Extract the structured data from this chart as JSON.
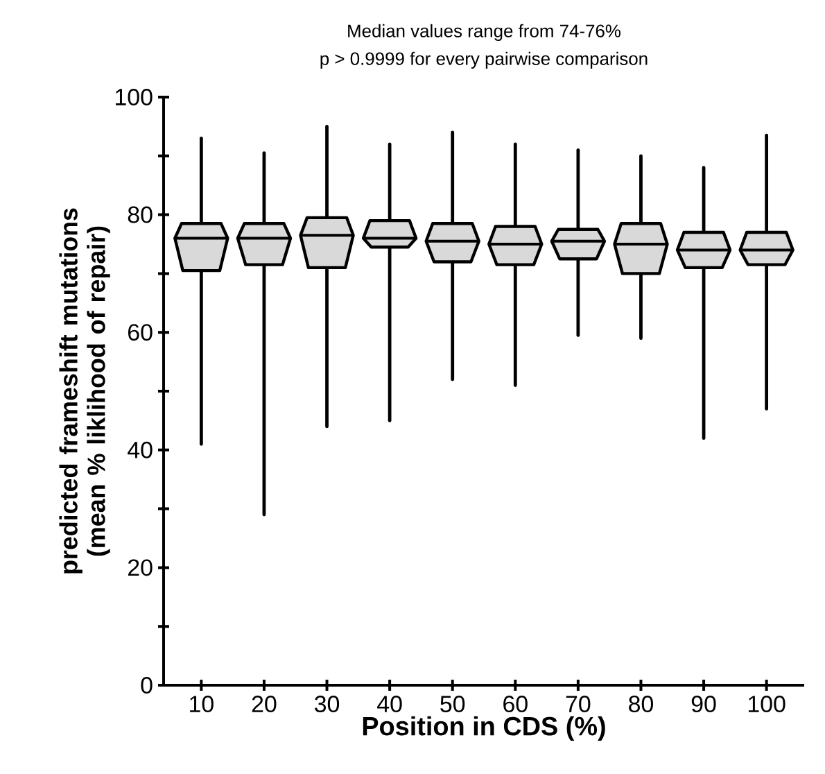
{
  "chart_data": {
    "type": "box",
    "title": "Median values range from 74-76%",
    "subtitle": "p > 0.9999 for every pairwise comparison",
    "xlabel": "Position in CDS (%)",
    "ylabel": "predicted frameshift mutations (mean % liklihood of repair)",
    "categories": [
      "10",
      "20",
      "30",
      "40",
      "50",
      "60",
      "70",
      "80",
      "90",
      "100"
    ],
    "color": "#d9d9d9",
    "ylim": [
      0,
      100
    ],
    "yticks": [
      0,
      {
        "value": 10,
        "label": null
      },
      20,
      {
        "value": 30,
        "label": null
      },
      40,
      {
        "value": 50,
        "label": null
      },
      60,
      {
        "value": 70,
        "label": null
      },
      80,
      {
        "value": 90,
        "label": null
      },
      100
    ],
    "boxes": [
      {
        "low": 41,
        "q1": 70.5,
        "median": 76,
        "q3": 78.5,
        "high": 93
      },
      {
        "low": 29,
        "q1": 71.5,
        "median": 76,
        "q3": 78.5,
        "high": 90.5
      },
      {
        "low": 44,
        "q1": 71,
        "median": 76.5,
        "q3": 79.5,
        "high": 95
      },
      {
        "low": 45,
        "q1": 74.5,
        "median": 76,
        "q3": 79,
        "high": 92
      },
      {
        "low": 52,
        "q1": 72,
        "median": 75.5,
        "q3": 78.5,
        "high": 94
      },
      {
        "low": 51,
        "q1": 71.5,
        "median": 75,
        "q3": 78,
        "high": 92
      },
      {
        "low": 59.5,
        "q1": 72.5,
        "median": 75.5,
        "q3": 77.5,
        "high": 91
      },
      {
        "low": 59,
        "q1": 70,
        "median": 75,
        "q3": 78.5,
        "high": 90
      },
      {
        "low": 42,
        "q1": 71,
        "median": 74,
        "q3": 77,
        "high": 88
      },
      {
        "low": 47,
        "q1": 71.5,
        "median": 74,
        "q3": 77,
        "high": 93.5
      }
    ]
  }
}
